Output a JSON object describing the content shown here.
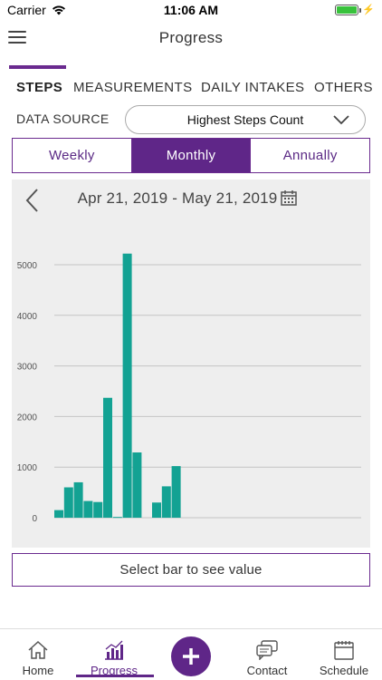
{
  "status_bar": {
    "carrier": "Carrier",
    "time": "11:06 AM"
  },
  "header": {
    "title": "Progress"
  },
  "tabs": [
    {
      "label": "STEPS",
      "active": true
    },
    {
      "label": "MEASUREMENTS",
      "active": false
    },
    {
      "label": "DAILY INTAKES",
      "active": false
    },
    {
      "label": "OTHERS",
      "active": false
    }
  ],
  "data_source": {
    "label": "DATA SOURCE",
    "selected": "Highest Steps Count"
  },
  "periods": [
    {
      "label": "Weekly",
      "active": false
    },
    {
      "label": "Monthly",
      "active": true
    },
    {
      "label": "Annually",
      "active": false
    }
  ],
  "chart": {
    "date_range": "Apr 21, 2019 - May 21, 2019"
  },
  "chart_data": {
    "type": "bar",
    "ylim": [
      0,
      5000
    ],
    "yticks": [
      0,
      1000,
      2000,
      3000,
      4000,
      5000
    ],
    "grid": true,
    "bar_color": "#13a293",
    "values": [
      150,
      600,
      700,
      330,
      310,
      2370,
      15,
      5220,
      1290,
      0,
      300,
      620,
      1020
    ]
  },
  "select_bar": {
    "label": "Select bar to see value"
  },
  "bottom_nav": {
    "items": [
      {
        "label": "Home",
        "icon": "home-icon"
      },
      {
        "label": "Progress",
        "icon": "chart-icon",
        "active": true
      },
      {
        "label": "Contact",
        "icon": "chat-icon"
      },
      {
        "label": "Schedule",
        "icon": "calendar-icon"
      }
    ],
    "fab_icon": "plus-icon"
  },
  "colors": {
    "accent": "#5f2688",
    "bar": "#13a293",
    "panel": "#eeeeee"
  }
}
